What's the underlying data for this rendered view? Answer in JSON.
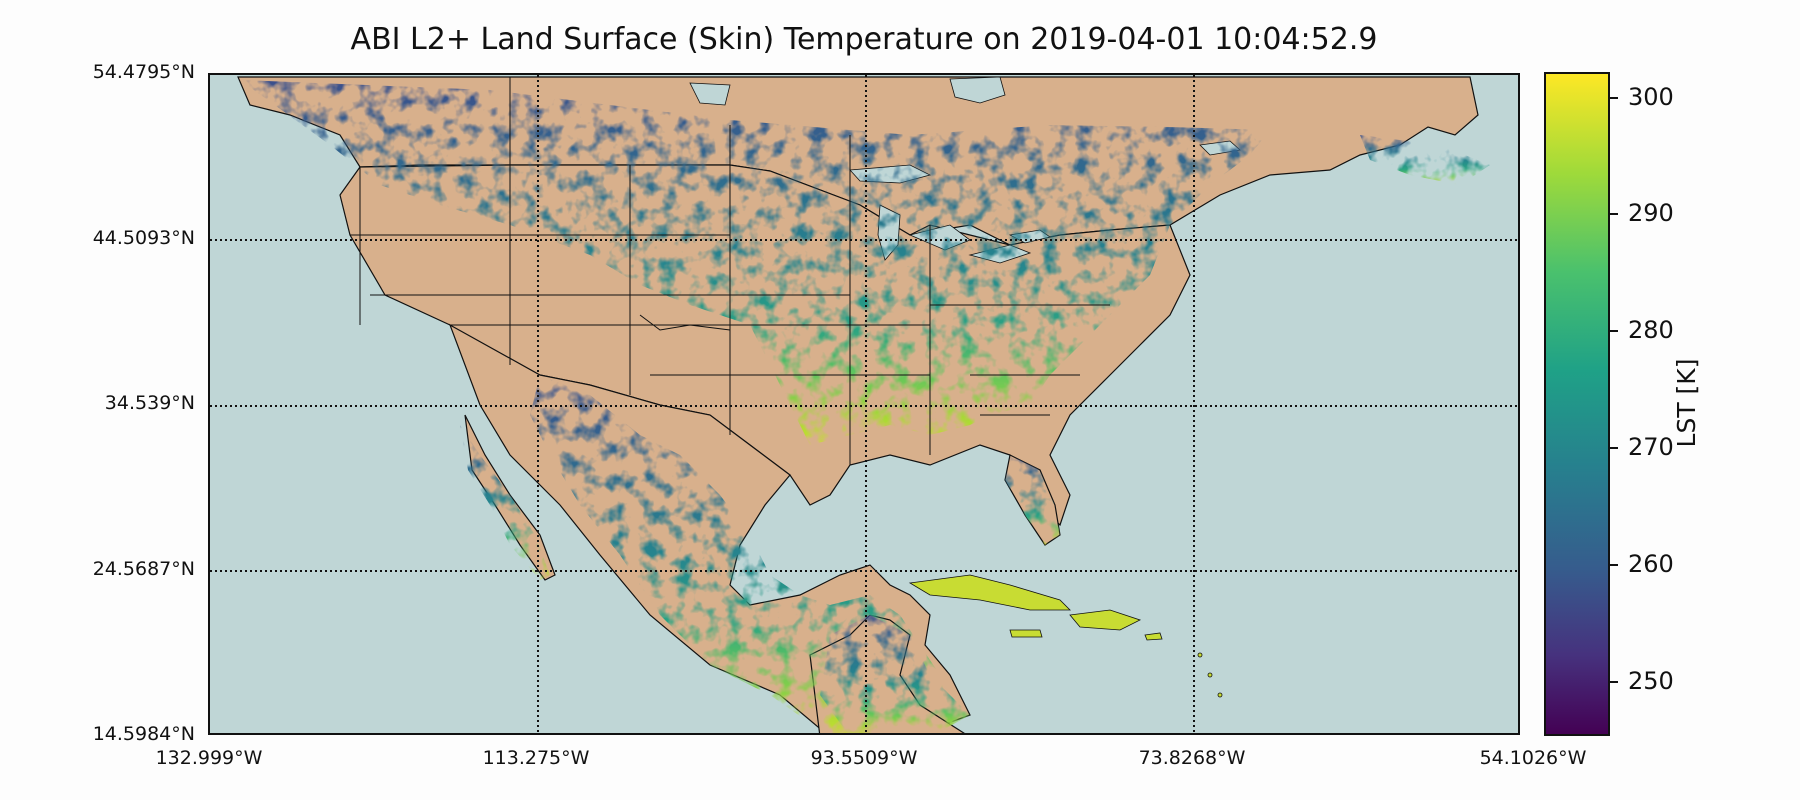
{
  "title": "ABI L2+ Land Surface (Skin) Temperature on 2019-04-01 10:04:52.9",
  "map": {
    "lat_labels": [
      "54.4795°N",
      "44.5093°N",
      "34.539°N",
      "24.5687°N",
      "14.5984°N"
    ],
    "lon_labels": [
      "132.999°W",
      "113.275°W",
      "93.5509°W",
      "73.8268°W",
      "54.1026°W"
    ],
    "ocean_color": "#bfd6d6",
    "land_color": "#d8b08c"
  },
  "colorbar": {
    "label": "LST [K]",
    "ticks": [
      "300",
      "290",
      "280",
      "270",
      "260",
      "250"
    ],
    "range": [
      245,
      302
    ],
    "colormap": "viridis"
  }
}
